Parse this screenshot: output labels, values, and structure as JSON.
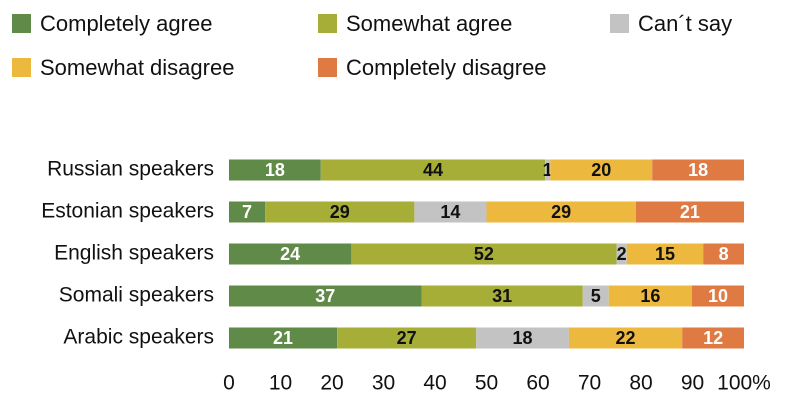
{
  "chart_data": {
    "type": "bar",
    "orientation": "horizontal",
    "stacked": true,
    "categories": [
      "Russian speakers",
      "Estonian speakers",
      "English speakers",
      "Somali speakers",
      "Arabic speakers"
    ],
    "series": [
      {
        "name": "Completely agree",
        "color": "#608a47",
        "label_color": "#ffffff",
        "values": [
          18,
          7,
          24,
          37,
          21
        ]
      },
      {
        "name": "Somewhat agree",
        "color": "#a6ae37",
        "label_color": "#111111",
        "values": [
          44,
          29,
          52,
          31,
          27
        ]
      },
      {
        "name": "Can´t say",
        "color": "#c3c3c3",
        "label_color": "#111111",
        "values": [
          1,
          14,
          2,
          5,
          18
        ]
      },
      {
        "name": "Somewhat disagree",
        "color": "#edb83e",
        "label_color": "#111111",
        "values": [
          20,
          29,
          15,
          16,
          22
        ]
      },
      {
        "name": "Completely disagree",
        "color": "#df7a42",
        "label_color": "#ffffff",
        "values": [
          18,
          21,
          8,
          10,
          12
        ]
      }
    ],
    "xlim": [
      0,
      100
    ],
    "x_ticks": [
      "0",
      "10",
      "20",
      "30",
      "40",
      "50",
      "60",
      "70",
      "80",
      "90",
      "100%"
    ],
    "legend_position": "top",
    "grid": false
  }
}
